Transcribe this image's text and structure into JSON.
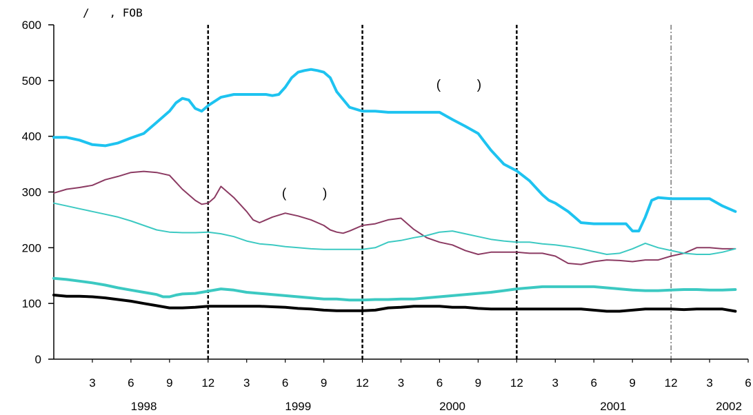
{
  "chart_data": {
    "type": "line",
    "title": "",
    "unit_label": "/   , FOB",
    "ylim": [
      0,
      600
    ],
    "y_ticks": [
      0,
      100,
      200,
      300,
      400,
      500,
      600
    ],
    "x_range": [
      0,
      54
    ],
    "x_ticks": [
      {
        "x": 3,
        "label": "3"
      },
      {
        "x": 6,
        "label": "6"
      },
      {
        "x": 9,
        "label": "9"
      },
      {
        "x": 12,
        "label": "12"
      },
      {
        "x": 15,
        "label": "3"
      },
      {
        "x": 18,
        "label": "6"
      },
      {
        "x": 21,
        "label": "9"
      },
      {
        "x": 24,
        "label": "12"
      },
      {
        "x": 27,
        "label": "3"
      },
      {
        "x": 30,
        "label": "6"
      },
      {
        "x": 33,
        "label": "9"
      },
      {
        "x": 36,
        "label": "12"
      },
      {
        "x": 39,
        "label": "3"
      },
      {
        "x": 42,
        "label": "6"
      },
      {
        "x": 45,
        "label": "9"
      },
      {
        "x": 48,
        "label": "12"
      },
      {
        "x": 51,
        "label": "3"
      },
      {
        "x": 54,
        "label": "6"
      }
    ],
    "years": [
      {
        "x": 7,
        "label": "1998"
      },
      {
        "x": 19,
        "label": "1999"
      },
      {
        "x": 31,
        "label": "2000"
      },
      {
        "x": 43.5,
        "label": "2001"
      },
      {
        "x": 52.5,
        "label": "2002"
      }
    ],
    "year_dividers": [
      {
        "x": 12,
        "style": "bold"
      },
      {
        "x": 24,
        "style": "bold"
      },
      {
        "x": 36,
        "style": "bold"
      },
      {
        "x": 48,
        "style": "thin"
      }
    ],
    "grid": false,
    "legend": "none",
    "annotations": [
      {
        "text": "(          )",
        "x": 31.5,
        "y": 485
      },
      {
        "text": "(          )",
        "x": 19.5,
        "y": 290
      }
    ],
    "series": [
      {
        "color": "#1EC3F0",
        "width": 4,
        "x": [
          0,
          1,
          2,
          3,
          4,
          5,
          6,
          7,
          8,
          9,
          9.5,
          10,
          10.5,
          11,
          11.5,
          12,
          13,
          14,
          15,
          16,
          16.5,
          17,
          17.5,
          18,
          18.5,
          19,
          19.5,
          20,
          20.5,
          21,
          21.5,
          22,
          23,
          24,
          25,
          26,
          27,
          28,
          29,
          30,
          31,
          32,
          33,
          33.5,
          34,
          35,
          36,
          37,
          38,
          38.5,
          39,
          40,
          40.5,
          41,
          42,
          43,
          44,
          44.5,
          45,
          45.5,
          46,
          46.5,
          47,
          48,
          49,
          50,
          51,
          52,
          53
        ],
        "y": [
          398,
          398,
          393,
          385,
          383,
          388,
          397,
          405,
          425,
          445,
          460,
          468,
          465,
          450,
          445,
          455,
          470,
          475,
          475,
          475,
          475,
          473,
          475,
          488,
          505,
          515,
          518,
          520,
          518,
          515,
          505,
          480,
          452,
          445,
          445,
          443,
          443,
          443,
          443,
          443,
          430,
          418,
          405,
          390,
          375,
          350,
          338,
          320,
          295,
          285,
          280,
          265,
          255,
          245,
          243,
          243,
          243,
          243,
          230,
          230,
          255,
          285,
          290,
          288,
          288,
          288,
          288,
          275,
          265
        ]
      },
      {
        "color": "#8B3A62",
        "width": 2,
        "x": [
          0,
          1,
          2,
          3,
          4,
          5,
          6,
          7,
          8,
          9,
          10,
          11,
          11.5,
          12,
          12.5,
          13,
          14,
          15,
          15.5,
          16,
          17,
          18,
          19,
          20,
          21,
          21.5,
          22,
          22.5,
          23,
          24,
          25,
          26,
          27,
          28,
          29,
          30,
          31,
          32,
          33,
          34,
          35,
          36,
          37,
          38,
          39,
          40,
          41,
          42,
          43,
          44,
          45,
          46,
          47,
          48,
          49,
          50,
          51,
          52,
          53
        ],
        "y": [
          298,
          305,
          308,
          312,
          322,
          328,
          335,
          337,
          335,
          330,
          305,
          285,
          278,
          280,
          290,
          310,
          290,
          265,
          250,
          245,
          255,
          262,
          257,
          250,
          240,
          232,
          228,
          226,
          230,
          240,
          243,
          250,
          253,
          233,
          218,
          210,
          205,
          195,
          188,
          192,
          192,
          192,
          190,
          190,
          185,
          172,
          170,
          175,
          178,
          177,
          175,
          178,
          178,
          185,
          190,
          200,
          200,
          198,
          198
        ]
      },
      {
        "color": "#3CC9C2",
        "width": 2,
        "x": [
          0,
          1,
          2,
          3,
          4,
          5,
          6,
          7,
          8,
          9,
          10,
          11,
          12,
          13,
          14,
          15,
          16,
          17,
          18,
          19,
          20,
          21,
          22,
          23,
          24,
          25,
          26,
          27,
          28,
          29,
          30,
          31,
          32,
          33,
          34,
          35,
          36,
          37,
          38,
          39,
          40,
          41,
          42,
          43,
          44,
          45,
          46,
          47,
          48,
          49,
          50,
          51,
          52,
          53
        ],
        "y": [
          280,
          275,
          270,
          265,
          260,
          255,
          248,
          240,
          232,
          228,
          227,
          227,
          228,
          225,
          220,
          212,
          207,
          205,
          202,
          200,
          198,
          197,
          197,
          197,
          197,
          200,
          210,
          213,
          218,
          222,
          228,
          230,
          225,
          220,
          215,
          212,
          210,
          210,
          207,
          205,
          202,
          198,
          193,
          188,
          190,
          198,
          208,
          200,
          195,
          190,
          188,
          188,
          192,
          198
        ]
      },
      {
        "color": "#3CC9C2",
        "width": 4,
        "x": [
          0,
          1,
          2,
          3,
          4,
          5,
          6,
          7,
          8,
          8.5,
          9,
          9.5,
          10,
          11,
          12,
          13,
          14,
          15,
          16,
          17,
          18,
          19,
          20,
          21,
          22,
          23,
          24,
          25,
          26,
          27,
          28,
          29,
          30,
          31,
          32,
          33,
          34,
          35,
          36,
          37,
          38,
          39,
          40,
          41,
          42,
          43,
          44,
          45,
          46,
          47,
          48,
          49,
          50,
          51,
          52,
          53
        ],
        "y": [
          145,
          143,
          140,
          137,
          133,
          128,
          124,
          120,
          116,
          112,
          112,
          115,
          117,
          118,
          122,
          126,
          124,
          120,
          118,
          116,
          114,
          112,
          110,
          108,
          108,
          106,
          106,
          107,
          107,
          108,
          108,
          110,
          112,
          114,
          116,
          118,
          120,
          123,
          126,
          128,
          130,
          130,
          130,
          130,
          130,
          128,
          126,
          124,
          123,
          123,
          124,
          125,
          125,
          124,
          124,
          125
        ]
      },
      {
        "color": "#000000",
        "width": 4,
        "x": [
          0,
          1,
          2,
          3,
          4,
          5,
          6,
          7,
          8,
          9,
          10,
          11,
          12,
          13,
          14,
          15,
          16,
          17,
          18,
          19,
          20,
          21,
          22,
          23,
          24,
          25,
          26,
          27,
          28,
          29,
          30,
          31,
          32,
          33,
          34,
          35,
          36,
          37,
          38,
          39,
          40,
          41,
          42,
          43,
          44,
          45,
          46,
          47,
          48,
          49,
          50,
          51,
          52,
          53
        ],
        "y": [
          115,
          113,
          113,
          112,
          110,
          107,
          104,
          100,
          96,
          92,
          92,
          93,
          95,
          95,
          95,
          95,
          95,
          94,
          93,
          91,
          90,
          88,
          87,
          87,
          87,
          88,
          92,
          93,
          95,
          95,
          95,
          93,
          93,
          91,
          90,
          90,
          90,
          90,
          90,
          90,
          90,
          90,
          88,
          86,
          86,
          88,
          90,
          90,
          90,
          89,
          90,
          90,
          90,
          86
        ]
      }
    ]
  }
}
